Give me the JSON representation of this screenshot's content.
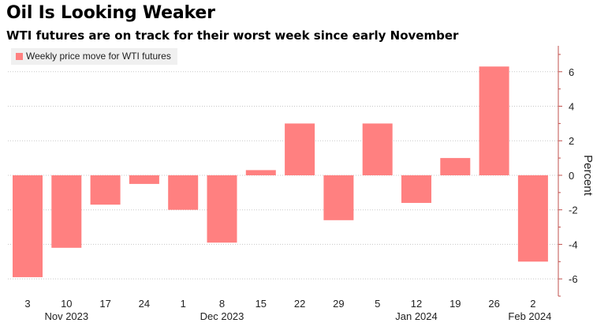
{
  "chart_data": {
    "type": "bar",
    "title": "Oil Is Looking Weaker",
    "subtitle": "WTI futures are on track for their worst week since early November",
    "legend": [
      {
        "label": "Weekly price move for WTI futures",
        "color": "#ff8080"
      }
    ],
    "ylabel": "Percent",
    "ylim": [
      -7,
      7.5
    ],
    "yticks": [
      6,
      4,
      2,
      0,
      -2,
      -4,
      -6
    ],
    "ytick_labels": [
      "6",
      "4",
      "2",
      "0",
      "-2",
      "-4",
      "-6"
    ],
    "categories": [
      "3",
      "10",
      "17",
      "24",
      "1",
      "8",
      "15",
      "22",
      "29",
      "5",
      "12",
      "19",
      "26",
      "2"
    ],
    "values": [
      -5.9,
      -4.2,
      -1.7,
      -0.5,
      -2.0,
      -3.9,
      0.3,
      3.0,
      -2.6,
      3.0,
      -1.6,
      1.0,
      6.3,
      -5.0
    ],
    "month_labels": [
      {
        "label": "Nov 2023",
        "after_index": 1
      },
      {
        "label": "Dec 2023",
        "after_index": 5
      },
      {
        "label": "Jan 2024",
        "after_index": 10
      },
      {
        "label": "Feb 2024",
        "after_index": 13
      }
    ],
    "bar_color": "#ff8080",
    "grid": true
  }
}
